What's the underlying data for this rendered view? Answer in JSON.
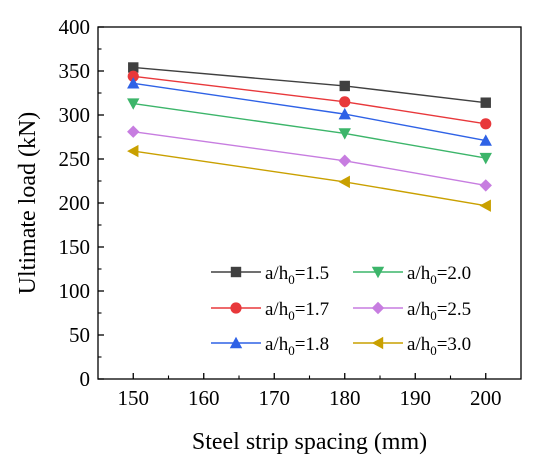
{
  "chart_data": {
    "type": "line",
    "title": "",
    "xlabel": "Steel strip spacing (mm)",
    "ylabel": "Ultimate load (kN)",
    "xlim": [
      145,
      205
    ],
    "ylim": [
      0,
      400
    ],
    "xticks": [
      "150",
      "160",
      "170",
      "180",
      "190",
      "200"
    ],
    "yticks": [
      "0",
      "50",
      "100",
      "150",
      "200",
      "250",
      "300",
      "350",
      "400"
    ],
    "x": [
      150,
      180,
      200
    ],
    "grid": false,
    "legend": "bottom-right",
    "series": [
      {
        "name_main": "a/h",
        "name_sub": "0",
        "name_tail": "=1.5",
        "color": "#404040",
        "marker": "square",
        "values": [
          354,
          333,
          314
        ]
      },
      {
        "name_main": "a/h",
        "name_sub": "0",
        "name_tail": "=1.7",
        "color": "#e8383b",
        "marker": "circle",
        "values": [
          344,
          315,
          290
        ]
      },
      {
        "name_main": "a/h",
        "name_sub": "0",
        "name_tail": "=1.8",
        "color": "#2f62e6",
        "marker": "triangle-up",
        "values": [
          336,
          301,
          271
        ]
      },
      {
        "name_main": "a/h",
        "name_sub": "0",
        "name_tail": "=2.0",
        "color": "#3cb56a",
        "marker": "triangle-down",
        "values": [
          313,
          279,
          251
        ]
      },
      {
        "name_main": "a/h",
        "name_sub": "0",
        "name_tail": "=2.5",
        "color": "#c77de0",
        "marker": "diamond",
        "values": [
          281,
          248,
          220
        ]
      },
      {
        "name_main": "a/h",
        "name_sub": "0",
        "name_tail": "=3.0",
        "color": "#c9a000",
        "marker": "triangle-left",
        "values": [
          259,
          224,
          197
        ]
      }
    ]
  }
}
